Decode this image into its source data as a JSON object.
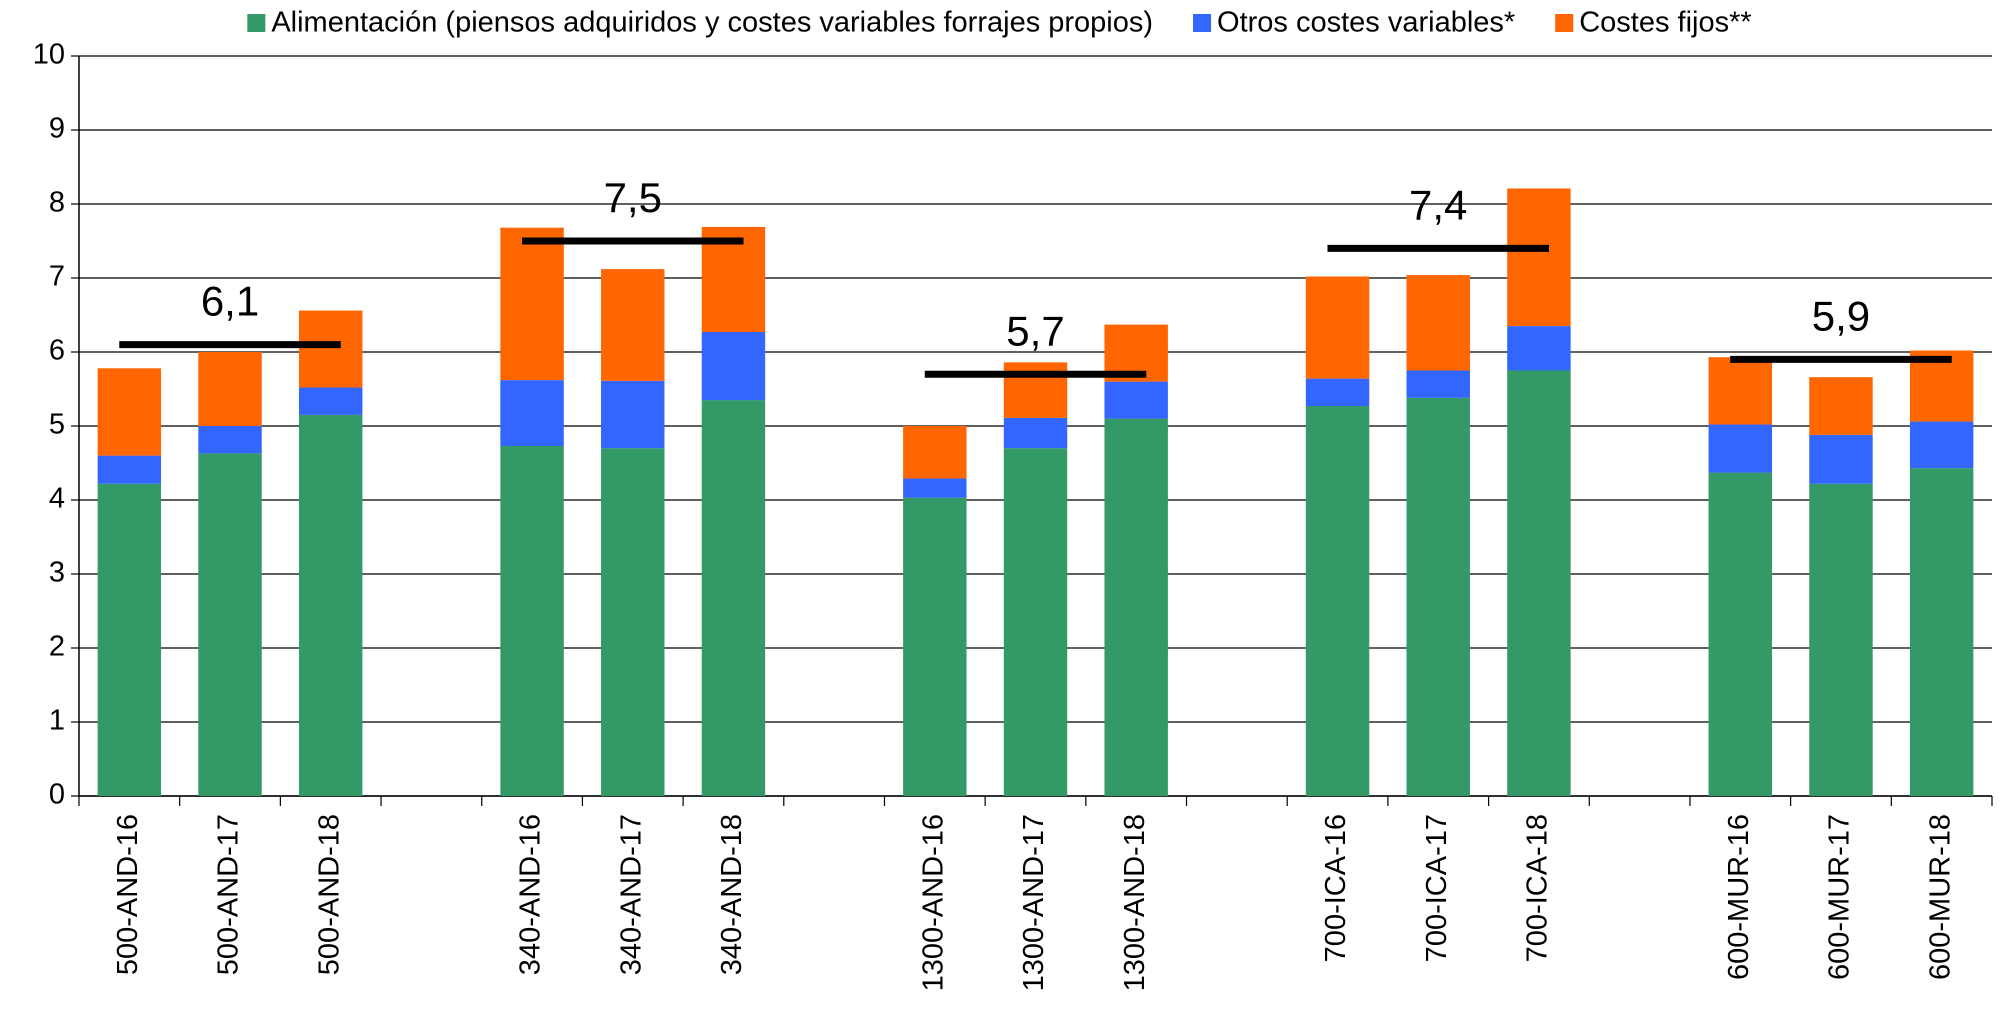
{
  "chart_data": {
    "type": "stacked-bar",
    "categories": [
      "500-AND-16",
      "500-AND-17",
      "500-AND-18",
      null,
      "340-AND-16",
      "340-AND-17",
      "340-AND-18",
      null,
      "1300-AND-16",
      "1300-AND-17",
      "1300-AND-18",
      null,
      "700-ICA-16",
      "700-ICA-17",
      "700-ICA-18",
      null,
      "600-MUR-16",
      "600-MUR-17",
      "600-MUR-18"
    ],
    "series": [
      {
        "name": "Alimentación (piensos adquiridos y costes variables forrajes propios)",
        "color": "#339966",
        "values": [
          4.22,
          4.63,
          5.15,
          null,
          4.73,
          4.7,
          5.35,
          null,
          4.03,
          4.7,
          5.1,
          null,
          5.27,
          5.38,
          5.75,
          null,
          4.37,
          4.22,
          4.43
        ]
      },
      {
        "name": "Otros costes variables*",
        "color": "#3366ff",
        "values": [
          0.38,
          0.37,
          0.37,
          null,
          0.89,
          0.91,
          0.92,
          null,
          0.26,
          0.41,
          0.5,
          null,
          0.37,
          0.37,
          0.6,
          null,
          0.65,
          0.66,
          0.63
        ]
      },
      {
        "name": "Costes fijos**",
        "color": "#ff6600",
        "values": [
          1.18,
          1.0,
          1.04,
          null,
          2.06,
          1.51,
          1.42,
          null,
          0.71,
          0.75,
          0.77,
          null,
          1.38,
          1.29,
          1.86,
          null,
          0.91,
          0.78,
          0.96
        ]
      }
    ],
    "averages": {
      "values": [
        6.1,
        7.5,
        5.7,
        7.4,
        5.9
      ],
      "value_labels": [
        "6,1",
        "7,5",
        "5,7",
        "7,4",
        "5,9"
      ]
    },
    "ylim": [
      0,
      10
    ],
    "yticks": [
      0,
      1,
      2,
      3,
      4,
      5,
      6,
      7,
      8,
      9,
      10
    ],
    "grid": true,
    "legend": "top"
  }
}
